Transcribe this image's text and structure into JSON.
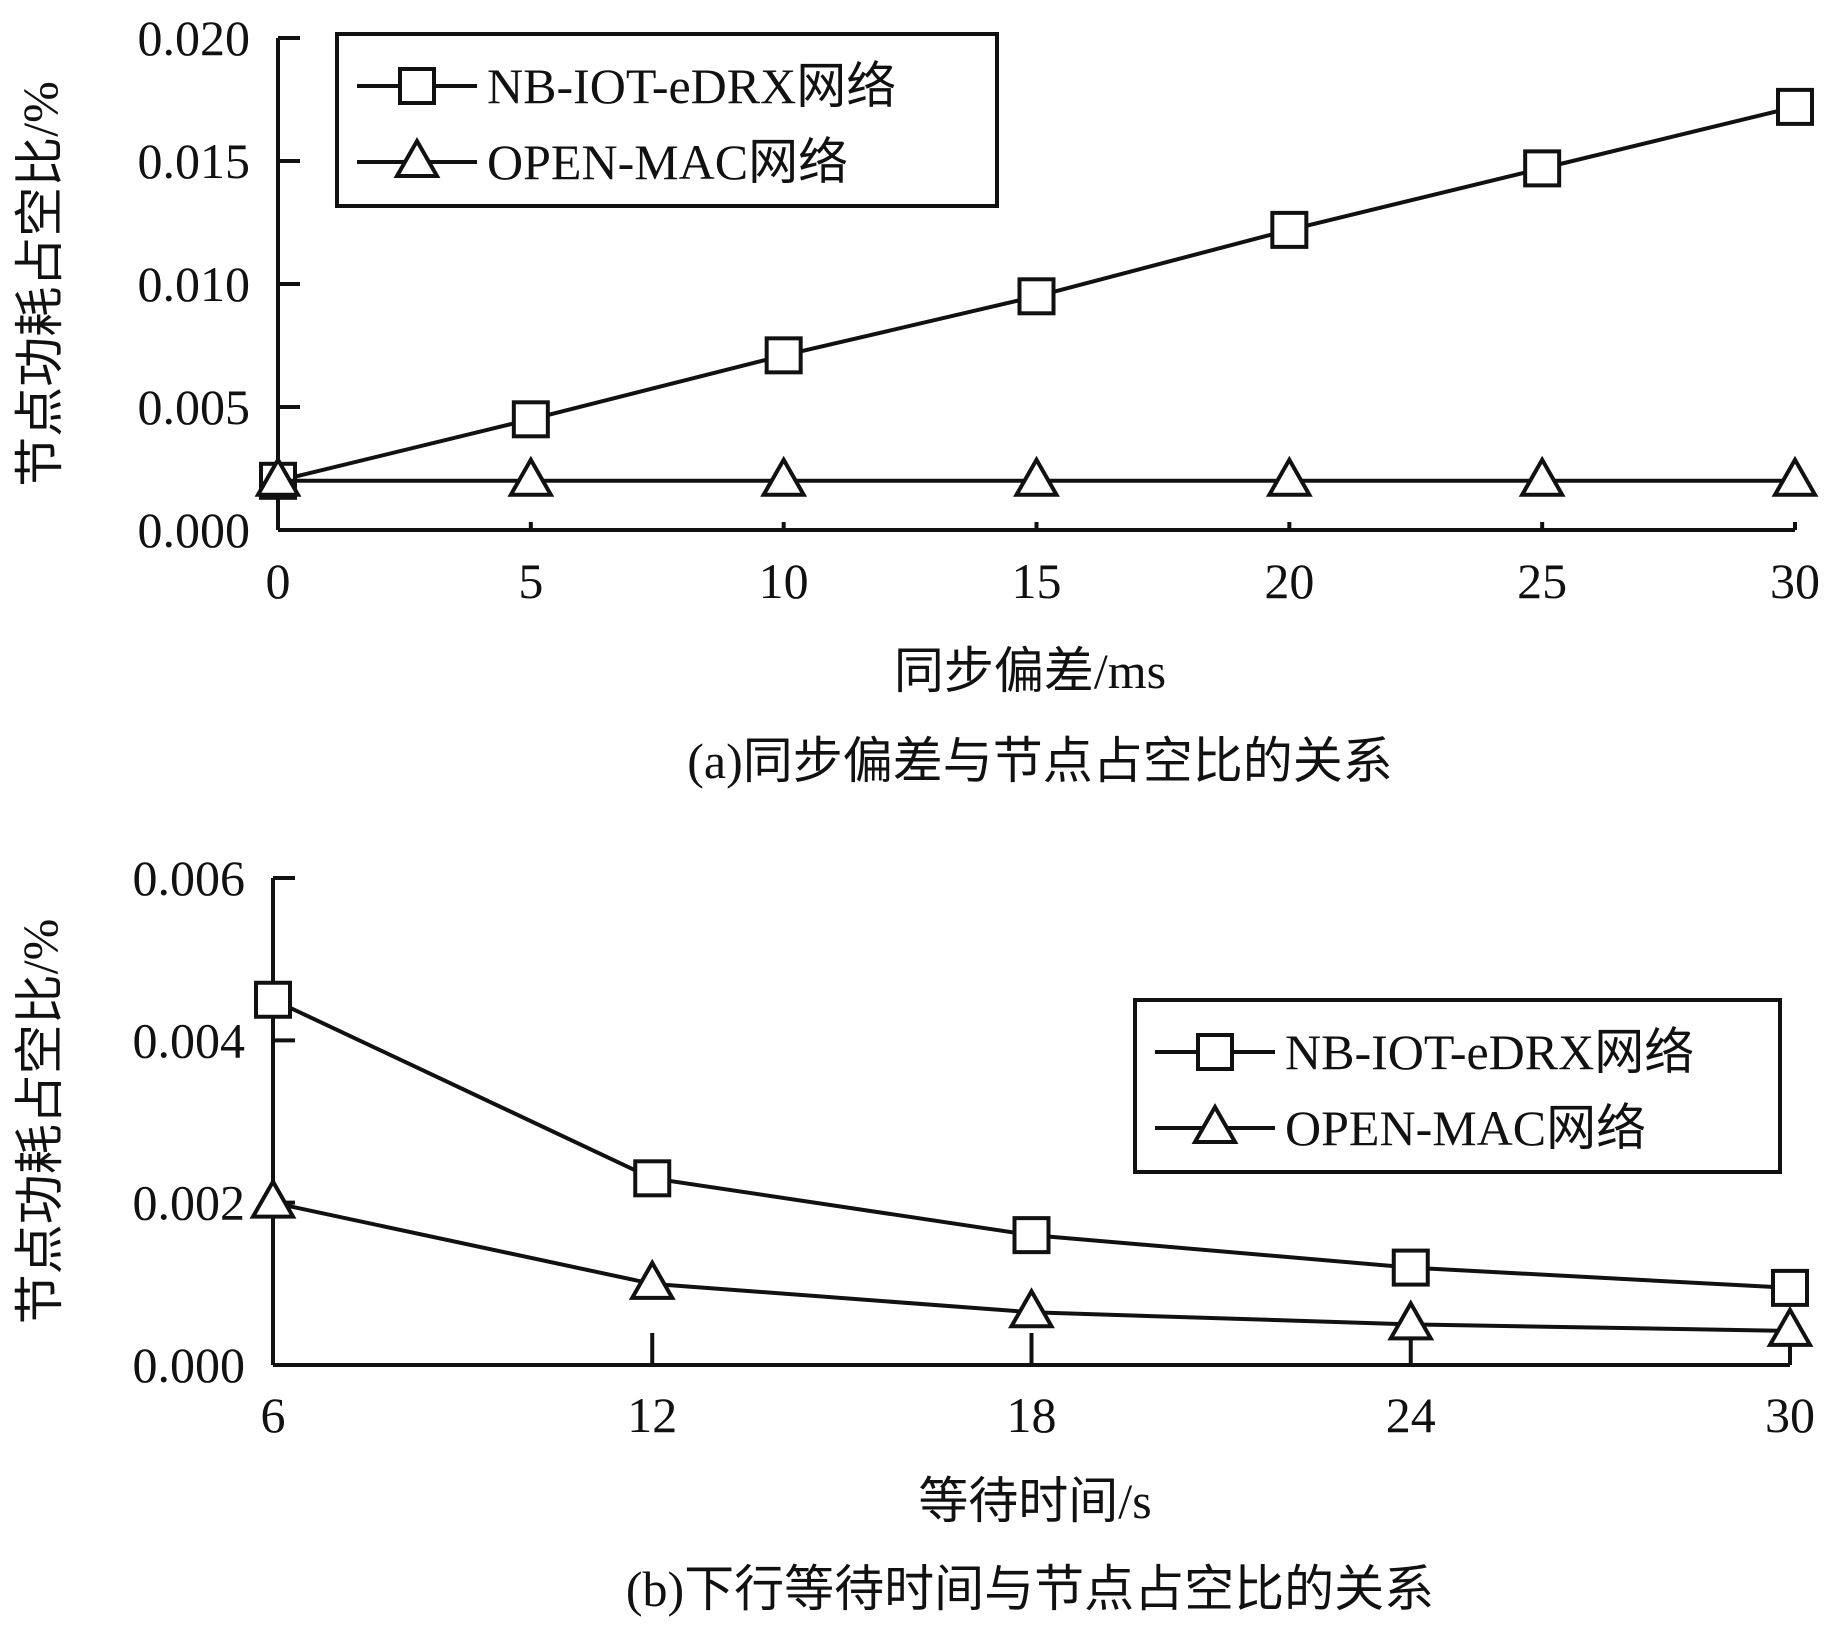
{
  "chart_data": [
    {
      "type": "line",
      "caption": "(a)同步偏差与节点占空比的关系",
      "xlabel": "同步偏差/ms",
      "ylabel": "节点功耗占空比/%",
      "x": [
        0,
        5,
        10,
        15,
        20,
        25,
        30
      ],
      "x_ticks": [
        "0",
        "5",
        "10",
        "15",
        "20",
        "25",
        "30"
      ],
      "xlim": [
        0,
        30
      ],
      "ylim": [
        0,
        0.02
      ],
      "y_ticks": [
        "0.000",
        "0.005",
        "0.010",
        "0.015",
        "0.020"
      ],
      "y_tick_values": [
        0,
        0.005,
        0.01,
        0.015,
        0.02
      ],
      "grid": false,
      "legend_position": "top-left",
      "series": [
        {
          "name": "NB-IOT-eDRX网络",
          "marker": "square",
          "values": [
            0.002,
            0.0045,
            0.0071,
            0.0095,
            0.0122,
            0.0147,
            0.0172
          ]
        },
        {
          "name": "OPEN-MAC网络",
          "marker": "triangle",
          "values": [
            0.002,
            0.002,
            0.002,
            0.002,
            0.002,
            0.002,
            0.002
          ]
        }
      ]
    },
    {
      "type": "line",
      "caption": "(b)下行等待时间与节点占空比的关系",
      "xlabel": "等待时间/s",
      "ylabel": "节点功耗占空比/%",
      "x": [
        6,
        12,
        18,
        24,
        30
      ],
      "x_ticks": [
        "6",
        "12",
        "18",
        "24",
        "30"
      ],
      "xlim": [
        6,
        30
      ],
      "ylim": [
        0,
        0.006
      ],
      "y_ticks": [
        "0.000",
        "0.002",
        "0.004",
        "0.006"
      ],
      "y_tick_values": [
        0,
        0.002,
        0.004,
        0.006
      ],
      "grid": false,
      "legend_position": "top-right",
      "series": [
        {
          "name": "NB-IOT-eDRX网络",
          "marker": "square",
          "values": [
            0.0045,
            0.0023,
            0.0016,
            0.0012,
            0.00095
          ]
        },
        {
          "name": "OPEN-MAC网络",
          "marker": "triangle",
          "values": [
            0.002,
            0.001,
            0.00065,
            0.0005,
            0.00042
          ]
        }
      ]
    }
  ]
}
